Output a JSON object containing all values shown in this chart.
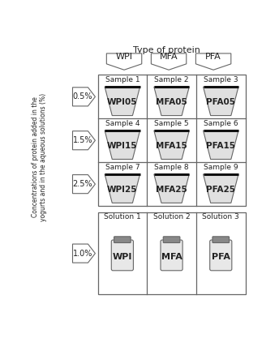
{
  "title_top": "Type of protein",
  "ylabel_line1": "Concentrations of protein added in the",
  "ylabel_line2": "yogurts and in the aqueous solutions (%)",
  "protein_types": [
    "WPI",
    "MFA",
    "PFA"
  ],
  "yogurt_rows": [
    {
      "conc": "0.5%",
      "samples": [
        "Sample 1",
        "Sample 2",
        "Sample 3"
      ],
      "labels": [
        "WPI05",
        "MFA05",
        "PFA05"
      ]
    },
    {
      "conc": "1.5%",
      "samples": [
        "Sample 4",
        "Sample 5",
        "Sample 6"
      ],
      "labels": [
        "WPI15",
        "MFA15",
        "PFA15"
      ]
    },
    {
      "conc": "2.5%",
      "samples": [
        "Sample 7",
        "Sample 8",
        "Sample 9"
      ],
      "labels": [
        "WPI25",
        "MFA25",
        "PFA25"
      ]
    }
  ],
  "solution_row": {
    "conc": "1.0%",
    "samples": [
      "Solution 1",
      "Solution 2",
      "Solution 3"
    ],
    "labels": [
      "WPI",
      "MFA",
      "PFA"
    ]
  },
  "bg_color": "#ffffff",
  "cup_fill": "#e0e0e0",
  "bottle_fill": "#e8e8e8",
  "bottle_cap_fill": "#888888",
  "edge_color": "#666666",
  "text_color": "#222222"
}
